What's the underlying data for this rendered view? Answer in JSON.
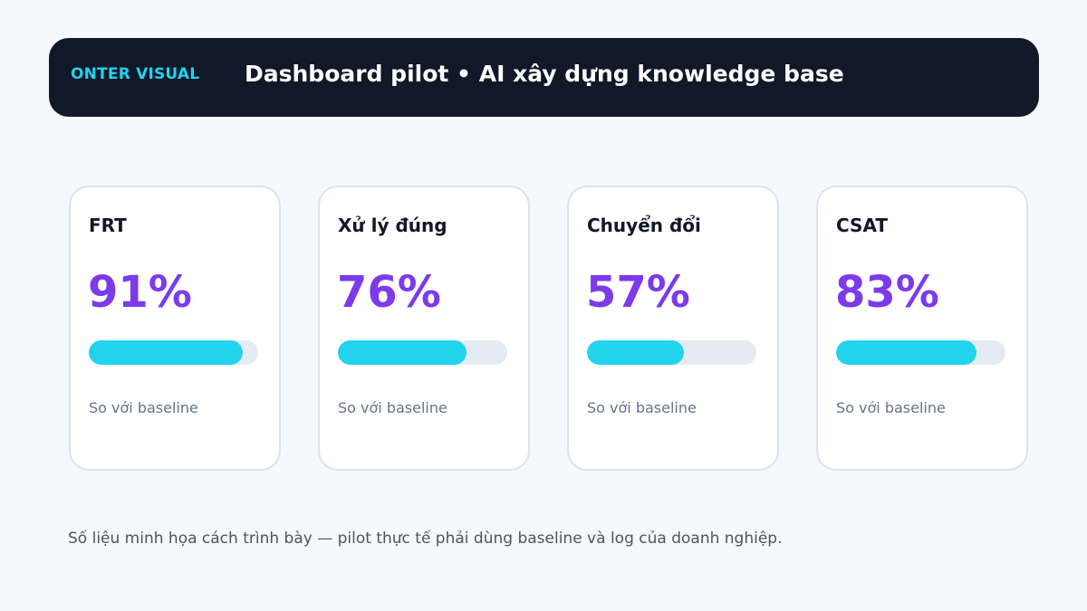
{
  "header": {
    "brand": "ONTER VISUAL",
    "title": "Dashboard pilot • AI xây dựng knowledge base"
  },
  "colors": {
    "header_bg": "#111827",
    "brand": "#22d3ee",
    "value": "#7c3aed",
    "progress_fill": "#22d3ee",
    "progress_track": "#e5ebf3"
  },
  "cards": [
    {
      "label": "FRT",
      "value": "91%",
      "progress": 0.91,
      "note": "So với baseline"
    },
    {
      "label": "Xử lý đúng",
      "value": "76%",
      "progress": 0.76,
      "note": "So với baseline"
    },
    {
      "label": "Chuyển đổi",
      "value": "57%",
      "progress": 0.57,
      "note": "So với baseline"
    },
    {
      "label": "CSAT",
      "value": "83%",
      "progress": 0.83,
      "note": "So với baseline"
    }
  ],
  "footnote": "Số liệu minh họa cách trình bày — pilot thực tế phải dùng baseline và log của doanh nghiệp."
}
